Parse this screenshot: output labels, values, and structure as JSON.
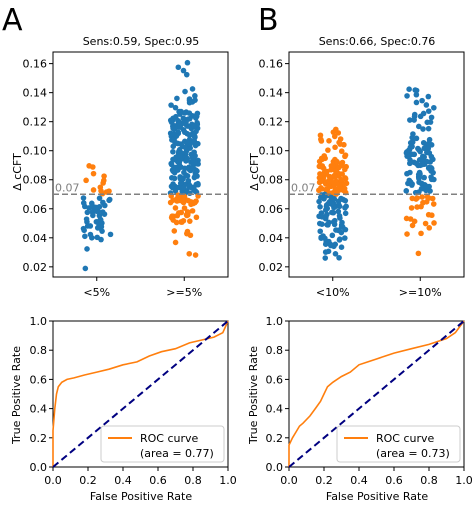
{
  "panel_labels": [
    "A",
    "B"
  ],
  "chart_data": [
    {
      "type": "scatter",
      "subtype": "strip",
      "title": "Sens:0.59, Spec:0.95",
      "ylabel": "Δ cCFT",
      "xlabel": "",
      "categories": [
        "<5%",
        ">=5%"
      ],
      "ylim": [
        0.013,
        0.168
      ],
      "yticks": [
        "0.02",
        "0.04",
        "0.06",
        "0.08",
        "0.10",
        "0.12",
        "0.14",
        "0.16"
      ],
      "threshold": {
        "value": 0.07,
        "label": "0.07"
      },
      "colors": {
        "above_or_positive": "#1f77b4",
        "orange": "#ff7f0e",
        "threshold_line": "#808080"
      },
      "groups": [
        {
          "category": "<5%",
          "n": 60,
          "min": 0.015,
          "max": 0.105,
          "blue_below_threshold": true
        },
        {
          "category": ">=5%",
          "n": 260,
          "min": 0.018,
          "max": 0.165,
          "blue_above_threshold": true
        }
      ]
    },
    {
      "type": "scatter",
      "subtype": "strip",
      "title": "Sens:0.66, Spec:0.76",
      "ylabel": "Δ cCFT",
      "xlabel": "",
      "categories": [
        "<10%",
        ">=10%"
      ],
      "ylim": [
        0.013,
        0.168
      ],
      "yticks": [
        "0.02",
        "0.04",
        "0.06",
        "0.08",
        "0.10",
        "0.12",
        "0.14",
        "0.16"
      ],
      "threshold": {
        "value": 0.07,
        "label": "0.07"
      },
      "colors": {
        "above_or_positive": "#1f77b4",
        "orange": "#ff7f0e",
        "threshold_line": "#808080"
      },
      "groups": [
        {
          "category": "<10%",
          "n": 190,
          "min": 0.015,
          "max": 0.128,
          "blue_below_threshold": true
        },
        {
          "category": ">=10%",
          "n": 130,
          "min": 0.018,
          "max": 0.165,
          "blue_above_threshold": true
        }
      ]
    },
    {
      "type": "line",
      "xlabel": "False Positive Rate",
      "ylabel": "True Positive Rate",
      "xlim": [
        0,
        1
      ],
      "ylim": [
        0,
        1
      ],
      "xticks": [
        "0.0",
        "0.2",
        "0.4",
        "0.6",
        "0.8",
        "1.0"
      ],
      "yticks": [
        "0.0",
        "0.2",
        "0.4",
        "0.6",
        "0.8",
        "1.0"
      ],
      "legend": {
        "position": "lower-right",
        "lines": [
          "ROC curve",
          "(area = 0.77)"
        ]
      },
      "series": [
        {
          "name": "ROC curve",
          "color": "#ff7f0e",
          "x": [
            0,
            0,
            0.01,
            0.02,
            0.03,
            0.05,
            0.08,
            0.12,
            0.18,
            0.25,
            0.32,
            0.4,
            0.48,
            0.55,
            0.62,
            0.7,
            0.78,
            0.85,
            0.92,
            0.97,
            1.0
          ],
          "y": [
            0,
            0.25,
            0.4,
            0.5,
            0.55,
            0.58,
            0.6,
            0.61,
            0.63,
            0.65,
            0.67,
            0.7,
            0.72,
            0.76,
            0.79,
            0.81,
            0.85,
            0.87,
            0.89,
            0.92,
            1.0
          ]
        },
        {
          "color": "#000080",
          "dashed": true,
          "x": [
            0,
            1
          ],
          "y": [
            0,
            1
          ]
        }
      ]
    },
    {
      "type": "line",
      "xlabel": "False Positive Rate",
      "ylabel": "True Positive Rate",
      "xlim": [
        0,
        1
      ],
      "ylim": [
        0,
        1
      ],
      "xticks": [
        "0.0",
        "0.2",
        "0.4",
        "0.6",
        "0.8",
        "1.0"
      ],
      "yticks": [
        "0.0",
        "0.2",
        "0.4",
        "0.6",
        "0.8",
        "1.0"
      ],
      "legend": {
        "position": "lower-right",
        "lines": [
          "ROC curve",
          "(area = 0.73)"
        ]
      },
      "series": [
        {
          "name": "ROC curve",
          "color": "#ff7f0e",
          "x": [
            0,
            0,
            0.02,
            0.04,
            0.06,
            0.08,
            0.12,
            0.15,
            0.18,
            0.2,
            0.22,
            0.25,
            0.3,
            0.35,
            0.4,
            0.45,
            0.5,
            0.55,
            0.6,
            0.7,
            0.8,
            0.9,
            0.95,
            1.0
          ],
          "y": [
            0,
            0.15,
            0.2,
            0.24,
            0.28,
            0.3,
            0.35,
            0.4,
            0.45,
            0.5,
            0.55,
            0.58,
            0.62,
            0.65,
            0.7,
            0.72,
            0.74,
            0.76,
            0.78,
            0.81,
            0.84,
            0.88,
            0.92,
            1.0
          ]
        },
        {
          "color": "#000080",
          "dashed": true,
          "x": [
            0,
            1
          ],
          "y": [
            0,
            1
          ]
        }
      ]
    }
  ]
}
